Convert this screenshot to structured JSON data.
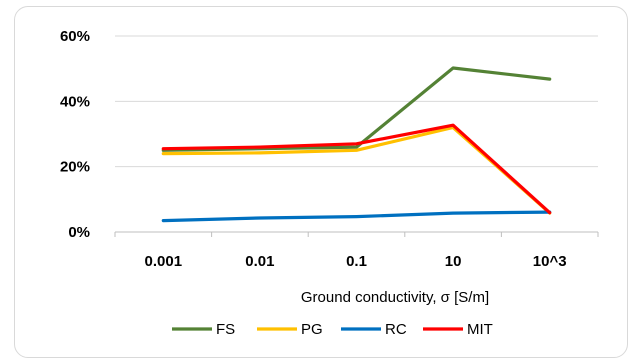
{
  "chart_data": {
    "type": "line",
    "categories": [
      "0.001",
      "0.01",
      "0.1",
      "10",
      "10^3"
    ],
    "xlabel": "Ground conductivity, σ [S/m]",
    "ylabel": "",
    "ylim": [
      0,
      60
    ],
    "yticks": [
      "0%",
      "20%",
      "40%",
      "60%"
    ],
    "grid": "horizontal",
    "legend_position": "bottom",
    "series": [
      {
        "name": "FS",
        "color": "#548235",
        "values": [
          25.0,
          25.5,
          26.0,
          50.2,
          46.8
        ]
      },
      {
        "name": "PG",
        "color": "#ffc000",
        "values": [
          24.0,
          24.2,
          25.0,
          32.0,
          5.8
        ]
      },
      {
        "name": "RC",
        "color": "#0070c0",
        "values": [
          3.5,
          4.3,
          4.7,
          5.8,
          6.1
        ]
      },
      {
        "name": "MIT",
        "color": "#ff0000",
        "values": [
          25.5,
          26.0,
          27.0,
          32.7,
          5.9
        ]
      }
    ]
  }
}
